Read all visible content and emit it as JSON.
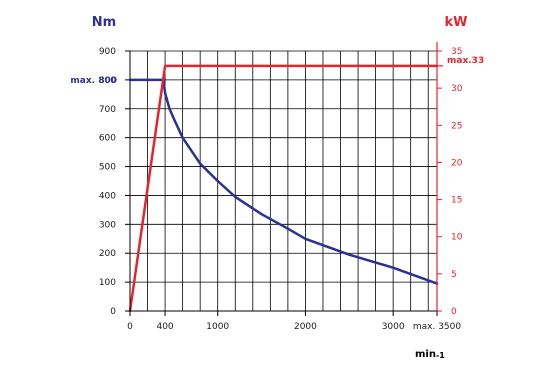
{
  "chart_data": {
    "type": "line",
    "left_axis": {
      "title": "Nm",
      "ticks": [
        "0",
        "100",
        "200",
        "300",
        "400",
        "500",
        "600",
        "700",
        "800",
        "900"
      ],
      "ylim": [
        0,
        900
      ],
      "max_label": "max. 800",
      "max_value": 800
    },
    "right_axis": {
      "title": "kW",
      "ticks": [
        "0",
        "5",
        "10",
        "15",
        "20",
        "25",
        "30",
        "35"
      ],
      "ylim": [
        0,
        35
      ],
      "max_label": "max.33",
      "max_value": 33
    },
    "x_axis": {
      "title_main": "min",
      "title_sup": "-1",
      "tick_labels": [
        "0",
        "400",
        "1000",
        "2000",
        "3000",
        "max. 3500"
      ],
      "tick_values": [
        0,
        400,
        1000,
        2000,
        3000,
        3500
      ],
      "xlim": [
        0,
        3500
      ]
    },
    "grid": true,
    "series": [
      {
        "name": "Nm",
        "color": "#2e3192",
        "axis": "left",
        "x": [
          0,
          380,
          400,
          450,
          500,
          600,
          700,
          800,
          1000,
          1200,
          1500,
          1800,
          2000,
          2500,
          3000,
          3500
        ],
        "y": [
          800,
          800,
          755,
          700,
          665,
          600,
          555,
          510,
          450,
          395,
          335,
          285,
          250,
          195,
          150,
          95
        ]
      },
      {
        "name": "kW",
        "color": "#e3262e",
        "axis": "right",
        "x": [
          0,
          400,
          3500
        ],
        "y": [
          0,
          33,
          33
        ]
      }
    ],
    "colors": {
      "torque": "#2e3192",
      "power": "#e3262e",
      "grid": "#000000"
    }
  }
}
